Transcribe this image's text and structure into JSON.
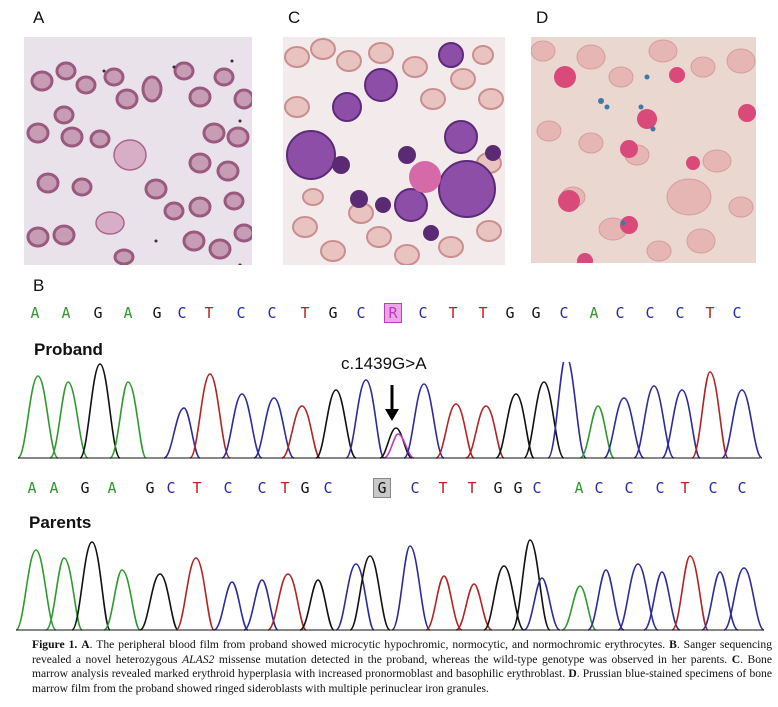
{
  "panels": {
    "a_label": "A",
    "c_label": "C",
    "d_label": "D",
    "b_label": "B"
  },
  "sequencing": {
    "proband_label": "Proband",
    "parents_label": "Parents",
    "mutation_label": "c.1439G>A",
    "proband_bases": [
      "A",
      "A",
      "G",
      "A",
      "G",
      "C",
      "T",
      "C",
      "C",
      "T",
      "G",
      "C",
      "R",
      "C",
      "T",
      "T",
      "G",
      "G",
      "C",
      "A",
      "C",
      "C",
      "C",
      "T",
      "C"
    ],
    "parents_bases": [
      "A",
      "A",
      "G",
      "A",
      "G",
      "C",
      "T",
      "C",
      "C",
      "T",
      "G",
      "C",
      "G",
      "C",
      "T",
      "T",
      "G",
      "G",
      "C",
      "A",
      "C",
      "C",
      "C",
      "T",
      "C",
      "C"
    ],
    "base_colors": {
      "A": "#2e9a2e",
      "G": "#111111",
      "C": "#2b2b9e",
      "T": "#b52222",
      "R": "#c23ab8"
    },
    "highlight_proband_bg": "#e9a6e8",
    "highlight_parents_bg": "#c8c8c8"
  },
  "caption": {
    "fig_label": "Figure 1.",
    "a_letter": "A",
    "a_text": ". The peripheral blood film from proband showed microcytic hypochromic, normocytic, and normochromic erythrocytes. ",
    "b_letter": "B",
    "b_text1": ". Sanger sequencing revealed a novel heterozygous ",
    "gene": "ALAS2",
    "b_text2": " missense mutation detected in the proband, whereas the wild-type genotype was observed in her parents. ",
    "c_letter": "C",
    "c_text": ". Bone marrow analysis revealed marked erythroid hyperplasia with increased pronormoblast and basophilic erythroblast. ",
    "d_letter": "D",
    "d_text": ". Prussian blue-stained specimens of bone marrow film from the proband showed ringed sideroblasts with multiple perinuclear iron granules."
  }
}
